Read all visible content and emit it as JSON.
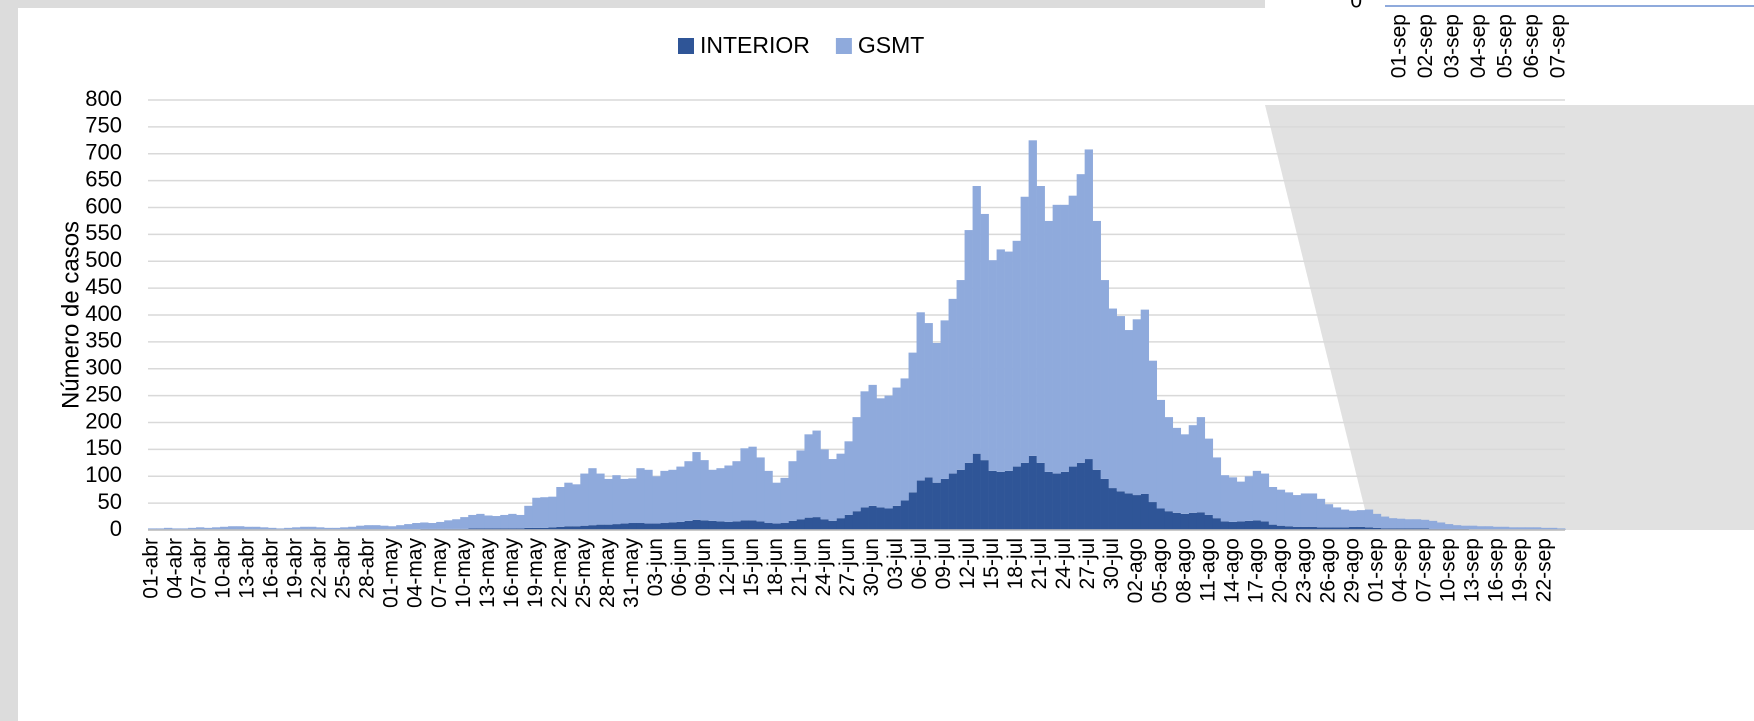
{
  "chart_data": {
    "type": "bar",
    "stacked": true,
    "y_label": "Número de casos",
    "legend": "top",
    "grid": true,
    "ylim": [
      0,
      800
    ],
    "yticks": [
      0,
      50,
      100,
      150,
      200,
      250,
      300,
      350,
      400,
      450,
      500,
      550,
      600,
      650,
      700,
      750,
      800
    ],
    "categories": [
      "01-abr",
      null,
      null,
      "04-abr",
      null,
      null,
      "07-abr",
      null,
      null,
      "10-abr",
      null,
      null,
      "13-abr",
      null,
      null,
      "16-abr",
      null,
      null,
      "19-abr",
      null,
      null,
      "22-abr",
      null,
      null,
      "25-abr",
      null,
      null,
      "28-abr",
      null,
      null,
      "01-may",
      null,
      null,
      "04-may",
      null,
      null,
      "07-may",
      null,
      null,
      "10-may",
      null,
      null,
      "13-may",
      null,
      null,
      "16-may",
      null,
      null,
      "19-may",
      null,
      null,
      "22-may",
      null,
      null,
      "25-may",
      null,
      null,
      "28-may",
      null,
      null,
      "31-may",
      null,
      null,
      "03-jun",
      null,
      null,
      "06-jun",
      null,
      null,
      "09-jun",
      null,
      null,
      "12-jun",
      null,
      null,
      "15-jun",
      null,
      null,
      "18-jun",
      null,
      null,
      "21-jun",
      null,
      null,
      "24-jun",
      null,
      null,
      "27-jun",
      null,
      null,
      "30-jun",
      null,
      null,
      "03-jul",
      null,
      null,
      "06-jul",
      null,
      null,
      "09-jul",
      null,
      null,
      "12-jul",
      null,
      null,
      "15-jul",
      null,
      null,
      "18-jul",
      null,
      null,
      "21-jul",
      null,
      null,
      "24-jul",
      null,
      null,
      "27-jul",
      null,
      null,
      "30-jul",
      null,
      null,
      "02-ago",
      null,
      null,
      "05-ago",
      null,
      null,
      "08-ago",
      null,
      null,
      "11-ago",
      null,
      null,
      "14-ago",
      null,
      null,
      "17-ago",
      null,
      null,
      "20-ago",
      null,
      null,
      "23-ago",
      null,
      null,
      "26-ago",
      null,
      null,
      "29-ago",
      null,
      null,
      "01-sep",
      null,
      null,
      "04-sep",
      null,
      null,
      "07-sep",
      null,
      null,
      "10-sep",
      null,
      null,
      "13-sep",
      null,
      null,
      "16-sep",
      null,
      null,
      "19-sep",
      null,
      null,
      "22-sep",
      null,
      null
    ],
    "series": [
      {
        "name": "INTERIOR",
        "color": "#2f5597",
        "values": [
          0,
          0,
          1,
          0,
          0,
          1,
          1,
          0,
          1,
          1,
          1,
          1,
          1,
          1,
          1,
          0,
          0,
          1,
          1,
          1,
          1,
          1,
          0,
          0,
          1,
          1,
          1,
          1,
          1,
          1,
          1,
          1,
          1,
          1,
          2,
          2,
          2,
          2,
          2,
          2,
          3,
          3,
          3,
          3,
          3,
          3,
          3,
          4,
          4,
          4,
          5,
          6,
          7,
          7,
          8,
          9,
          10,
          10,
          11,
          12,
          13,
          13,
          12,
          12,
          13,
          14,
          15,
          17,
          19,
          18,
          17,
          16,
          15,
          16,
          18,
          18,
          16,
          13,
          12,
          13,
          17,
          20,
          23,
          24,
          20,
          17,
          22,
          28,
          35,
          42,
          45,
          42,
          40,
          45,
          55,
          70,
          92,
          98,
          88,
          95,
          105,
          112,
          125,
          142,
          130,
          110,
          108,
          110,
          118,
          125,
          138,
          125,
          108,
          105,
          108,
          118,
          125,
          132,
          112,
          95,
          78,
          72,
          68,
          65,
          67,
          52,
          40,
          35,
          32,
          30,
          32,
          33,
          28,
          22,
          16,
          15,
          16,
          17,
          18,
          16,
          10,
          8,
          7,
          6,
          6,
          6,
          5,
          5,
          5,
          5,
          6,
          6,
          5,
          4,
          3,
          3,
          3,
          3,
          3,
          3,
          2,
          2,
          2,
          2,
          2,
          1,
          1,
          1,
          1,
          1,
          1,
          1,
          1,
          1,
          1,
          1,
          1
        ]
      },
      {
        "name": "GSMT",
        "color": "#8faadc",
        "values": [
          3,
          3,
          3,
          3,
          3,
          3,
          4,
          4,
          4,
          5,
          6,
          6,
          5,
          5,
          4,
          4,
          3,
          3,
          4,
          5,
          5,
          4,
          4,
          4,
          4,
          5,
          7,
          8,
          8,
          7,
          6,
          8,
          10,
          12,
          12,
          11,
          13,
          16,
          18,
          22,
          25,
          27,
          24,
          23,
          25,
          27,
          25,
          41,
          56,
          57,
          57,
          74,
          81,
          78,
          97,
          106,
          95,
          85,
          91,
          83,
          83,
          102,
          100,
          88,
          97,
          98,
          103,
          111,
          126,
          112,
          95,
          99,
          105,
          112,
          134,
          137,
          119,
          97,
          76,
          84,
          111,
          128,
          155,
          161,
          130,
          115,
          120,
          137,
          175,
          216,
          225,
          203,
          210,
          220,
          227,
          260,
          313,
          287,
          260,
          295,
          325,
          353,
          433,
          498,
          458,
          392,
          414,
          408,
          420,
          495,
          587,
          515,
          467,
          500,
          497,
          504,
          537,
          576,
          463,
          370,
          334,
          326,
          304,
          327,
          343,
          263,
          202,
          175,
          158,
          148,
          163,
          177,
          142,
          113,
          86,
          83,
          74,
          83,
          92,
          89,
          70,
          67,
          63,
          59,
          62,
          62,
          53,
          43,
          37,
          33,
          30,
          31,
          33,
          26,
          22,
          19,
          18,
          17,
          17,
          16,
          15,
          12,
          9,
          7,
          6,
          7,
          6,
          6,
          5,
          5,
          4,
          4,
          4,
          4,
          3,
          3,
          2
        ]
      }
    ]
  },
  "inset": {
    "yticks": [
      0
    ],
    "categories": [
      "01-sep",
      "02-sep",
      "03-sep",
      "04-sep",
      "05-sep",
      "06-sep",
      "07-sep"
    ]
  }
}
